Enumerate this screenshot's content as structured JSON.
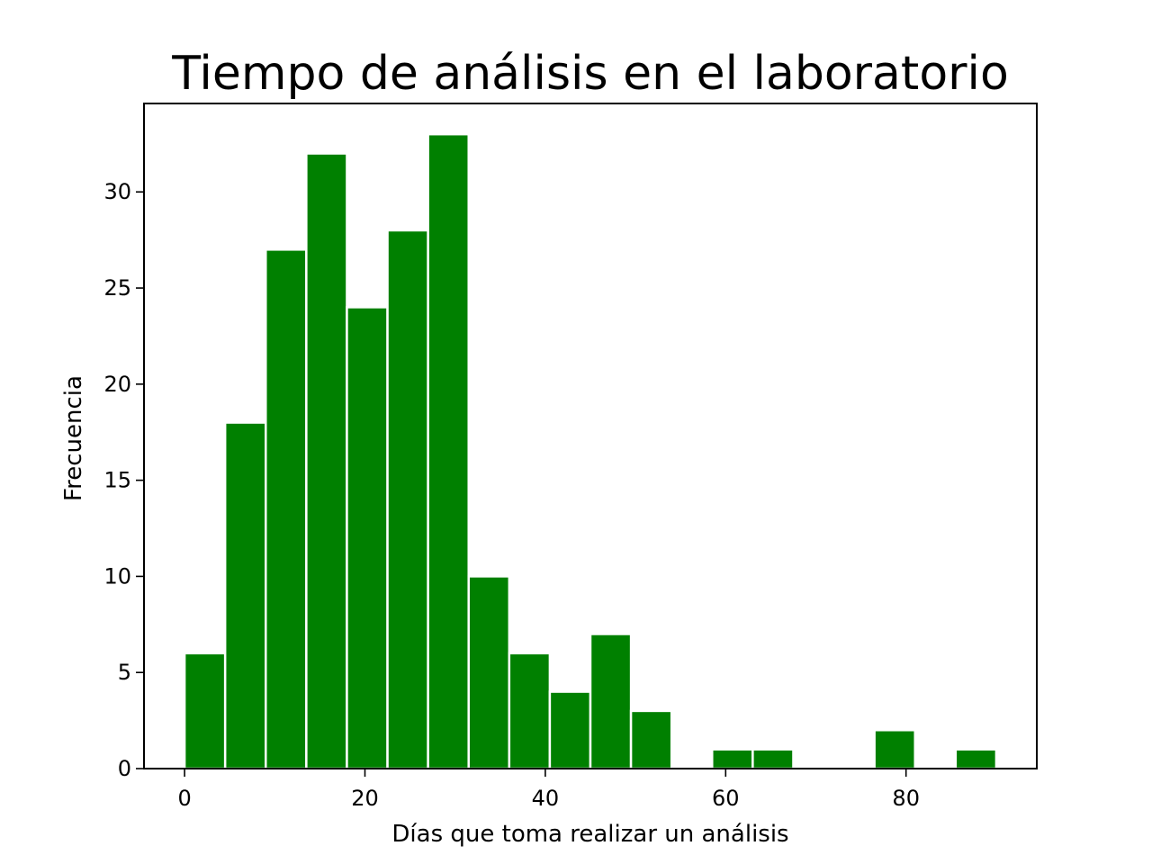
{
  "chart_data": {
    "type": "bar",
    "title": "Tiempo de análisis en el laboratorio",
    "xlabel": "Días que toma realizar un análisis",
    "ylabel": "Frecuencia",
    "xlim": [
      -4.5,
      94.5
    ],
    "ylim": [
      0,
      34.6
    ],
    "bar_color": "#008000",
    "grid": false,
    "x_ticks": [
      0,
      20,
      40,
      60,
      80
    ],
    "x_tick_labels": [
      "0",
      "20",
      "40",
      "60",
      "80"
    ],
    "y_ticks": [
      0,
      5,
      10,
      15,
      20,
      25,
      30
    ],
    "y_tick_labels": [
      "0",
      "5",
      "10",
      "15",
      "20",
      "25",
      "30"
    ],
    "bins": [
      {
        "x_start": 0.0,
        "x_end": 4.5,
        "value": 6
      },
      {
        "x_start": 4.5,
        "x_end": 9.0,
        "value": 18
      },
      {
        "x_start": 9.0,
        "x_end": 13.5,
        "value": 27
      },
      {
        "x_start": 13.5,
        "x_end": 18.0,
        "value": 32
      },
      {
        "x_start": 18.0,
        "x_end": 22.5,
        "value": 24
      },
      {
        "x_start": 22.5,
        "x_end": 27.0,
        "value": 28
      },
      {
        "x_start": 27.0,
        "x_end": 31.5,
        "value": 33
      },
      {
        "x_start": 31.5,
        "x_end": 36.0,
        "value": 10
      },
      {
        "x_start": 36.0,
        "x_end": 40.5,
        "value": 6
      },
      {
        "x_start": 40.5,
        "x_end": 45.0,
        "value": 4
      },
      {
        "x_start": 45.0,
        "x_end": 49.5,
        "value": 7
      },
      {
        "x_start": 49.5,
        "x_end": 54.0,
        "value": 3
      },
      {
        "x_start": 54.0,
        "x_end": 58.5,
        "value": 0
      },
      {
        "x_start": 58.5,
        "x_end": 63.0,
        "value": 1
      },
      {
        "x_start": 63.0,
        "x_end": 67.5,
        "value": 1
      },
      {
        "x_start": 67.5,
        "x_end": 72.0,
        "value": 0
      },
      {
        "x_start": 72.0,
        "x_end": 76.5,
        "value": 0
      },
      {
        "x_start": 76.5,
        "x_end": 81.0,
        "value": 2
      },
      {
        "x_start": 81.0,
        "x_end": 85.5,
        "value": 0
      },
      {
        "x_start": 85.5,
        "x_end": 90.0,
        "value": 1
      }
    ]
  }
}
